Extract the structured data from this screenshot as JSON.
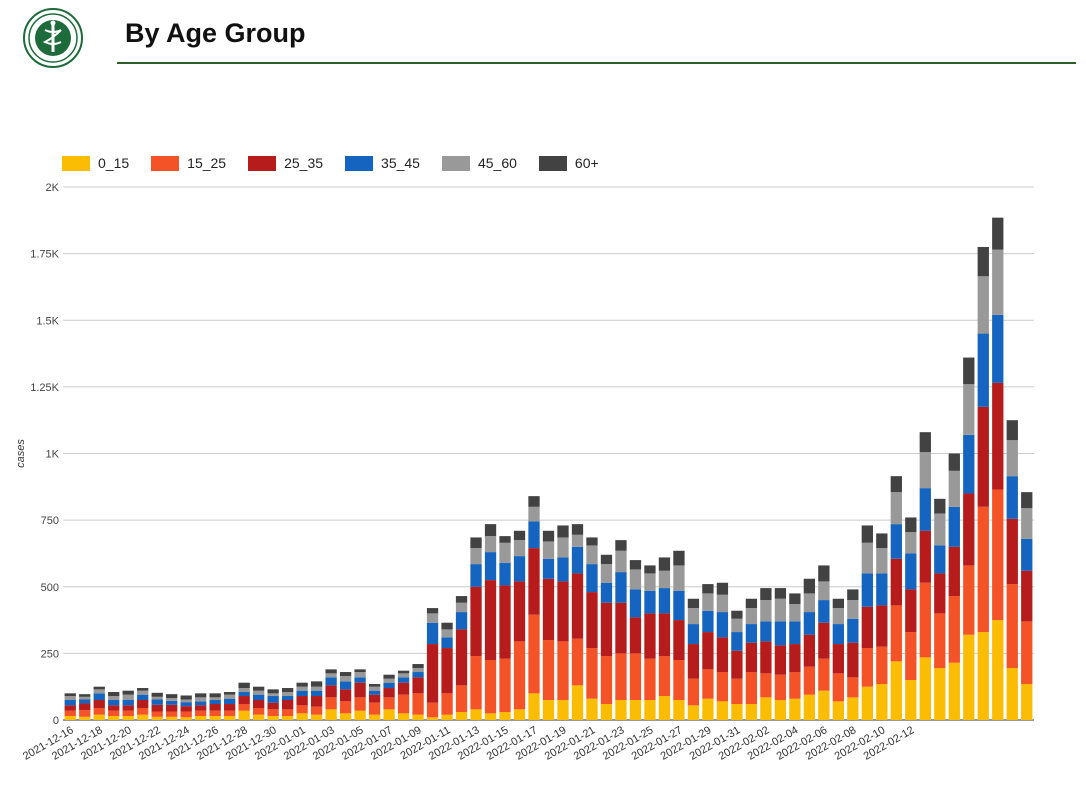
{
  "header": {
    "title": "By Age Group"
  },
  "logo": {
    "icon": "ministry-seal-icon",
    "color": "#1d6b3a"
  },
  "chart_data": {
    "type": "bar",
    "stacked": true,
    "ylabel": "cases",
    "ylim": [
      0,
      2000
    ],
    "yticks": [
      0,
      250,
      500,
      750,
      1000,
      1250,
      1500,
      1750,
      2000
    ],
    "ytick_labels": [
      "0",
      "250",
      "500",
      "750",
      "1K",
      "1.25K",
      "1.5K",
      "1.75K",
      "2K"
    ],
    "grid": true,
    "legend_position": "top-left",
    "start_date": "2021-12-16",
    "xtick_labels": [
      "2021-12-16",
      "2021-12-18",
      "2021-12-20",
      "2021-12-22",
      "2021-12-24",
      "2021-12-26",
      "2021-12-28",
      "2021-12-30",
      "2022-01-01",
      "2022-01-03",
      "2022-01-05",
      "2022-01-07",
      "2022-01-09",
      "2022-01-11",
      "2022-01-13",
      "2022-01-15",
      "2022-01-17",
      "2022-01-19",
      "2022-01-21",
      "2022-01-23",
      "2022-01-25",
      "2022-01-27",
      "2022-01-29",
      "2022-01-31",
      "2022-02-02",
      "2022-02-04",
      "2022-02-06",
      "2022-02-08",
      "2022-02-10",
      "2022-02-12"
    ],
    "series": [
      {
        "name": "0_15",
        "color": "#fbbc04",
        "values": [
          15,
          12,
          20,
          15,
          15,
          20,
          12,
          12,
          10,
          15,
          15,
          15,
          35,
          20,
          15,
          15,
          25,
          20,
          40,
          25,
          35,
          20,
          40,
          25,
          20,
          10,
          20,
          30,
          40,
          25,
          30,
          40,
          100,
          75,
          75,
          130,
          80,
          60,
          75,
          75,
          75,
          90,
          75,
          55,
          80,
          70,
          60,
          60,
          85,
          75,
          80,
          95,
          110,
          70,
          85,
          125,
          135,
          220,
          150,
          235,
          195,
          215,
          320,
          330,
          375,
          195,
          135
        ]
      },
      {
        "name": "15_25",
        "color": "#f35327",
        "values": [
          20,
          25,
          25,
          20,
          20,
          25,
          20,
          20,
          22,
          20,
          20,
          20,
          25,
          25,
          25,
          25,
          30,
          30,
          45,
          45,
          50,
          45,
          45,
          70,
          80,
          55,
          80,
          100,
          200,
          200,
          200,
          255,
          295,
          225,
          220,
          175,
          190,
          180,
          175,
          175,
          155,
          150,
          150,
          100,
          110,
          110,
          95,
          120,
          90,
          95,
          100,
          105,
          120,
          105,
          75,
          145,
          140,
          210,
          180,
          280,
          205,
          250,
          260,
          470,
          490,
          315,
          235
        ]
      },
      {
        "name": "25_35",
        "color": "#b71c1c",
        "values": [
          20,
          25,
          30,
          20,
          20,
          30,
          25,
          25,
          20,
          20,
          25,
          25,
          30,
          30,
          25,
          35,
          35,
          40,
          45,
          45,
          55,
          30,
          35,
          45,
          60,
          220,
          170,
          210,
          260,
          300,
          275,
          225,
          250,
          230,
          225,
          245,
          210,
          200,
          190,
          135,
          170,
          160,
          150,
          130,
          140,
          130,
          105,
          110,
          120,
          110,
          105,
          120,
          135,
          110,
          130,
          155,
          155,
          175,
          160,
          195,
          150,
          185,
          270,
          375,
          400,
          245,
          190
        ]
      },
      {
        "name": "35_45",
        "color": "#1565c0",
        "values": [
          20,
          15,
          25,
          20,
          20,
          20,
          20,
          15,
          15,
          15,
          15,
          20,
          15,
          20,
          25,
          15,
          20,
          20,
          30,
          30,
          20,
          15,
          20,
          20,
          20,
          80,
          40,
          65,
          85,
          105,
          85,
          95,
          100,
          75,
          90,
          100,
          105,
          75,
          115,
          105,
          85,
          95,
          110,
          75,
          80,
          95,
          70,
          70,
          75,
          90,
          85,
          85,
          85,
          75,
          90,
          125,
          120,
          130,
          135,
          160,
          105,
          150,
          220,
          275,
          255,
          160,
          120
        ]
      },
      {
        "name": "45_60",
        "color": "#999999",
        "values": [
          15,
          10,
          15,
          15,
          20,
          15,
          10,
          10,
          10,
          15,
          10,
          15,
          15,
          15,
          10,
          15,
          15,
          15,
          15,
          20,
          20,
          15,
          15,
          15,
          15,
          35,
          30,
          35,
          60,
          60,
          75,
          60,
          55,
          65,
          75,
          45,
          70,
          70,
          80,
          75,
          65,
          65,
          95,
          60,
          65,
          65,
          50,
          60,
          80,
          85,
          65,
          70,
          70,
          60,
          70,
          115,
          95,
          120,
          80,
          135,
          120,
          135,
          190,
          215,
          245,
          135,
          115
        ]
      },
      {
        "name": "60+",
        "color": "#424242",
        "values": [
          10,
          10,
          10,
          15,
          15,
          10,
          15,
          15,
          15,
          15,
          15,
          10,
          20,
          15,
          15,
          15,
          15,
          20,
          15,
          15,
          10,
          10,
          15,
          10,
          15,
          20,
          25,
          25,
          40,
          45,
          25,
          35,
          40,
          40,
          45,
          40,
          30,
          35,
          40,
          35,
          30,
          50,
          55,
          35,
          35,
          45,
          30,
          35,
          45,
          40,
          40,
          55,
          60,
          35,
          40,
          65,
          55,
          60,
          55,
          75,
          55,
          65,
          100,
          110,
          120,
          75,
          60
        ]
      }
    ]
  }
}
